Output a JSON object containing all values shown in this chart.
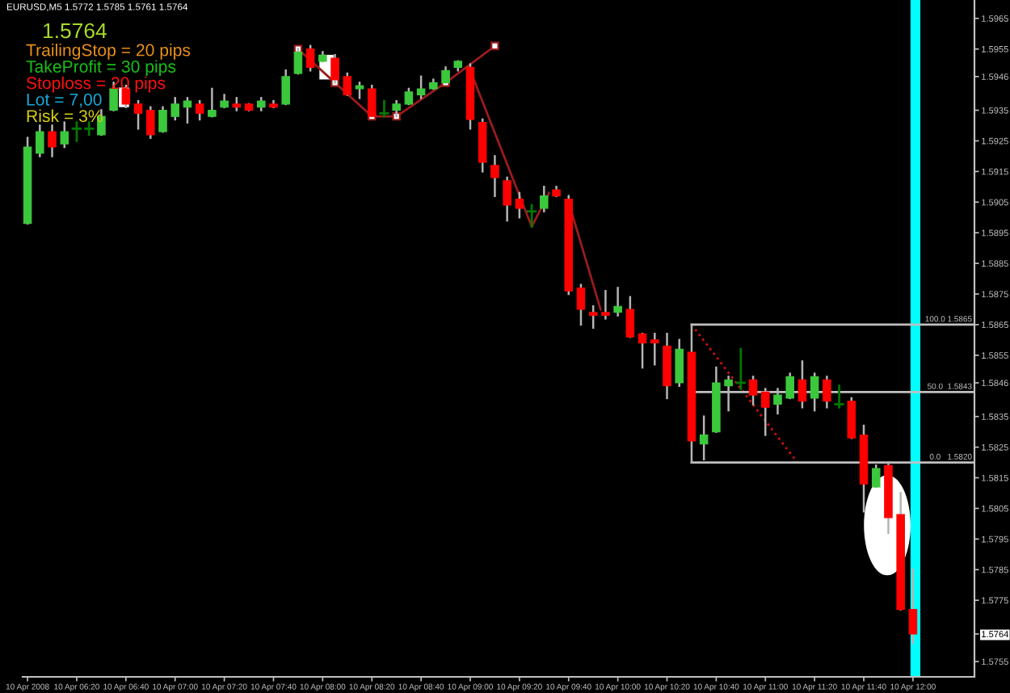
{
  "chart_data": {
    "type": "candlestick",
    "title": "EURUSD,M5 1.5772 1.5785 1.5761 1.5764",
    "x": [
      "2008-04-10T06:00",
      "2008-04-10T06:05",
      "2008-04-10T06:10",
      "2008-04-10T06:15",
      "2008-04-10T06:20",
      "2008-04-10T06:25",
      "2008-04-10T06:30",
      "2008-04-10T06:35",
      "2008-04-10T06:40",
      "2008-04-10T06:45",
      "2008-04-10T06:50",
      "2008-04-10T06:55",
      "2008-04-10T07:00",
      "2008-04-10T07:05",
      "2008-04-10T07:10",
      "2008-04-10T07:15",
      "2008-04-10T07:20",
      "2008-04-10T07:25",
      "2008-04-10T07:30",
      "2008-04-10T07:35",
      "2008-04-10T07:40",
      "2008-04-10T07:45",
      "2008-04-10T07:50",
      "2008-04-10T07:55",
      "2008-04-10T08:00",
      "2008-04-10T08:05",
      "2008-04-10T08:10",
      "2008-04-10T08:15",
      "2008-04-10T08:20",
      "2008-04-10T08:25",
      "2008-04-10T08:30",
      "2008-04-10T08:35",
      "2008-04-10T08:40",
      "2008-04-10T08:45",
      "2008-04-10T08:50",
      "2008-04-10T08:55",
      "2008-04-10T09:00",
      "2008-04-10T09:05",
      "2008-04-10T09:10",
      "2008-04-10T09:15",
      "2008-04-10T09:20",
      "2008-04-10T09:25",
      "2008-04-10T09:30",
      "2008-04-10T09:35",
      "2008-04-10T09:40",
      "2008-04-10T09:45",
      "2008-04-10T09:50",
      "2008-04-10T09:55",
      "2008-04-10T10:00",
      "2008-04-10T10:05",
      "2008-04-10T10:10",
      "2008-04-10T10:15",
      "2008-04-10T10:20",
      "2008-04-10T10:25",
      "2008-04-10T10:30",
      "2008-04-10T10:35",
      "2008-04-10T10:40",
      "2008-04-10T10:45",
      "2008-04-10T10:50",
      "2008-04-10T10:55",
      "2008-04-10T11:00",
      "2008-04-10T11:05",
      "2008-04-10T11:10",
      "2008-04-10T11:15",
      "2008-04-10T11:20",
      "2008-04-10T11:25",
      "2008-04-10T11:30",
      "2008-04-10T11:35",
      "2008-04-10T11:40",
      "2008-04-10T11:45",
      "2008-04-10T11:50",
      "2008-04-10T11:55",
      "2008-04-10T12:00"
    ],
    "ohlc": [
      [
        1.5898,
        1.5926,
        1.5898,
        1.5923
      ],
      [
        1.5921,
        1.593,
        1.592,
        1.5928
      ],
      [
        1.5928,
        1.593,
        1.592,
        1.5923
      ],
      [
        1.5924,
        1.5931,
        1.5923,
        1.5928
      ],
      [
        1.5929,
        1.5931,
        1.5925,
        1.5929
      ],
      [
        1.5929,
        1.5931,
        1.5927,
        1.5929
      ],
      [
        1.5927,
        1.5935,
        1.5927,
        1.5933
      ],
      [
        1.5935,
        1.5944,
        1.5935,
        1.5942
      ],
      [
        1.5942,
        1.5943,
        1.5936,
        1.5937
      ],
      [
        1.5937,
        1.5938,
        1.5929,
        1.5934
      ],
      [
        1.5935,
        1.5936,
        1.5926,
        1.5927
      ],
      [
        1.5928,
        1.5936,
        1.5928,
        1.5935
      ],
      [
        1.5933,
        1.5939,
        1.5932,
        1.5937
      ],
      [
        1.5936,
        1.5939,
        1.5931,
        1.5938
      ],
      [
        1.5937,
        1.5938,
        1.5932,
        1.5934
      ],
      [
        1.5933,
        1.5942,
        1.5933,
        1.5935
      ],
      [
        1.5936,
        1.594,
        1.5936,
        1.5938
      ],
      [
        1.5937,
        1.5939,
        1.5935,
        1.5936
      ],
      [
        1.5937,
        1.5937,
        1.5935,
        1.5935
      ],
      [
        1.5936,
        1.5939,
        1.5935,
        1.5938
      ],
      [
        1.5937,
        1.5938,
        1.5936,
        1.5936
      ],
      [
        1.5937,
        1.5948,
        1.5937,
        1.5946
      ],
      [
        1.5947,
        1.5955,
        1.5947,
        1.5954
      ],
      [
        1.5955,
        1.5956,
        1.5948,
        1.5949
      ],
      [
        1.5951,
        1.5954,
        1.5951,
        1.5953
      ],
      [
        1.5952,
        1.5953,
        1.5944,
        1.5945
      ],
      [
        1.5946,
        1.5947,
        1.594,
        1.594
      ],
      [
        1.5942,
        1.5944,
        1.5939,
        1.5943
      ],
      [
        1.5942,
        1.5943,
        1.5933,
        1.5933
      ],
      [
        1.5934,
        1.5938,
        1.5933,
        1.5934
      ],
      [
        1.5935,
        1.5938,
        1.5933,
        1.5937
      ],
      [
        1.5937,
        1.5942,
        1.5937,
        1.5941
      ],
      [
        1.594,
        1.5946,
        1.5939,
        1.5942
      ],
      [
        1.5942,
        1.5945,
        1.5942,
        1.5944
      ],
      [
        1.5944,
        1.5949,
        1.5944,
        1.5948
      ],
      [
        1.5949,
        1.5951,
        1.5948,
        1.5951
      ],
      [
        1.5949,
        1.595,
        1.5929,
        1.5932
      ],
      [
        1.5931,
        1.5932,
        1.5915,
        1.5918
      ],
      [
        1.5917,
        1.592,
        1.5907,
        1.5913
      ],
      [
        1.5912,
        1.5913,
        1.5899,
        1.5904
      ],
      [
        1.5906,
        1.5908,
        1.59,
        1.5903
      ],
      [
        1.5902,
        1.5904,
        1.5897,
        1.5902
      ],
      [
        1.5903,
        1.591,
        1.5902,
        1.5907
      ],
      [
        1.5909,
        1.591,
        1.5907,
        1.5907
      ],
      [
        1.5906,
        1.5907,
        1.5875,
        1.5876
      ],
      [
        1.5877,
        1.5878,
        1.5865,
        1.587
      ],
      [
        1.5869,
        1.5871,
        1.5864,
        1.5868
      ],
      [
        1.5869,
        1.5876,
        1.5867,
        1.5868
      ],
      [
        1.5869,
        1.5877,
        1.5868,
        1.5871
      ],
      [
        1.587,
        1.5874,
        1.5861,
        1.5861
      ],
      [
        1.5862,
        1.5862,
        1.5851,
        1.5859
      ],
      [
        1.586,
        1.5862,
        1.5852,
        1.5859
      ],
      [
        1.5858,
        1.5862,
        1.5841,
        1.5845
      ],
      [
        1.5846,
        1.586,
        1.5845,
        1.5857
      ],
      [
        1.5856,
        1.5865,
        1.582,
        1.5827
      ],
      [
        1.5826,
        1.5835,
        1.5821,
        1.5829
      ],
      [
        1.583,
        1.5851,
        1.583,
        1.5846
      ],
      [
        1.5845,
        1.5848,
        1.5837,
        1.5847
      ],
      [
        1.5846,
        1.5857,
        1.5844,
        1.5846
      ],
      [
        1.5847,
        1.5848,
        1.5839,
        1.5842
      ],
      [
        1.5843,
        1.5844,
        1.5829,
        1.5838
      ],
      [
        1.5839,
        1.5844,
        1.5836,
        1.5842
      ],
      [
        1.5841,
        1.5849,
        1.5841,
        1.5848
      ],
      [
        1.5847,
        1.5853,
        1.5838,
        1.584
      ],
      [
        1.5841,
        1.5849,
        1.5837,
        1.5848
      ],
      [
        1.5847,
        1.5848,
        1.5838,
        1.584
      ],
      [
        1.5839,
        1.5845,
        1.5838,
        1.5839
      ],
      [
        1.584,
        1.5841,
        1.5828,
        1.5828
      ],
      [
        1.5829,
        1.5832,
        1.5804,
        1.5813
      ],
      [
        1.5812,
        1.5819,
        1.5812,
        1.5818
      ],
      [
        1.5819,
        1.582,
        1.5797,
        1.5802
      ],
      [
        1.5803,
        1.581,
        1.5772,
        1.5772
      ],
      [
        1.5772,
        1.5785,
        1.5761,
        1.5764
      ]
    ],
    "colors": [
      "#3cc83c",
      "#3cc83c",
      "#ff0000",
      "#3cc83c",
      "#007800",
      "#007800",
      "#3cc83c",
      "#3cc83c",
      "#ff0000",
      "#ff0000",
      "#ff0000",
      "#3cc83c",
      "#3cc83c",
      "#3cc83c",
      "#ff0000",
      "#3cc83c",
      "#3cc83c",
      "#ff0000",
      "#ff0000",
      "#3cc83c",
      "#ff0000",
      "#3cc83c",
      "#3cc83c",
      "#ff0000",
      "#3cc83c",
      "#ff0000",
      "#ff0000",
      "#3cc83c",
      "#ff0000",
      "#007800",
      "#3cc83c",
      "#3cc83c",
      "#3cc83c",
      "#3cc83c",
      "#3cc83c",
      "#3cc83c",
      "#ff0000",
      "#ff0000",
      "#ff0000",
      "#ff0000",
      "#ff0000",
      "#007800",
      "#3cc83c",
      "#ff0000",
      "#ff0000",
      "#ff0000",
      "#ff0000",
      "#ff0000",
      "#3cc83c",
      "#ff0000",
      "#ff0000",
      "#ff0000",
      "#ff0000",
      "#3cc83c",
      "#ff0000",
      "#3cc83c",
      "#3cc83c",
      "#3cc83c",
      "#007800",
      "#ff0000",
      "#ff0000",
      "#3cc83c",
      "#3cc83c",
      "#ff0000",
      "#3cc83c",
      "#ff0000",
      "#007800",
      "#ff0000",
      "#ff0000",
      "#3cc83c",
      "#ff0000",
      "#ff0000",
      "#ff0000"
    ],
    "series": [
      {
        "type": "line",
        "x": [
          "2008-04-10T07:50",
          "2008-04-10T08:05",
          "2008-04-10T08:20",
          "2008-04-10T08:30",
          "2008-04-10T08:50",
          "2008-04-10T09:10"
        ],
        "values": [
          1.5955,
          1.5944,
          1.5933,
          1.5933,
          1.5944,
          1.5956
        ],
        "color": "#9a1c1c",
        "marker": "square"
      },
      {
        "type": "line",
        "x": [
          "2008-04-10T09:00",
          "2008-04-10T09:25",
          "2008-04-10T09:32"
        ],
        "values": [
          1.5948,
          1.5897,
          1.5908
        ],
        "color": "#9a1c1c"
      },
      {
        "type": "line",
        "x": [
          "2008-04-10T09:40",
          "2008-04-10T09:53"
        ],
        "values": [
          1.5905,
          1.587
        ],
        "color": "#9a1c1c"
      },
      {
        "type": "line",
        "x": [
          "2008-04-10T10:30",
          "2008-04-10T11:13"
        ],
        "values": [
          1.5865,
          1.582
        ],
        "color": "#d01010",
        "line_style": "dotted"
      },
      {
        "type": "line",
        "x": [
          "2008-04-10T10:30",
          "2008-04-10T12:25"
        ],
        "values": [
          1.5865,
          1.5865
        ],
        "color": "#c0c0c0"
      },
      {
        "type": "line",
        "x": [
          "2008-04-10T10:30",
          "2008-04-10T12:25"
        ],
        "values": [
          1.5843,
          1.5843
        ],
        "color": "#c0c0c0"
      },
      {
        "type": "line",
        "x": [
          "2008-04-10T10:30",
          "2008-04-10T12:25"
        ],
        "values": [
          1.582,
          1.582
        ],
        "color": "#c0c0c0"
      }
    ],
    "bands": [
      {
        "axis": "x",
        "from": "2008-04-10T11:59",
        "to": "2008-04-10T12:03",
        "color": "#00ffff"
      }
    ],
    "annotations": [
      "1.5764",
      "TrailingStop = 20 pips",
      "TakeProfit = 30 pips",
      "Stoploss = 20 pips",
      "Lot = 7,00",
      "Risk = 3%",
      {
        "text": "100.0",
        "x": "2008-04-10T12:09",
        "y": 1.5865
      },
      {
        "text": "1.5865",
        "x": "2008-04-10T12:19",
        "y": 1.5865
      },
      {
        "text": "50.0",
        "x": "2008-04-10T12:09",
        "y": 1.5843
      },
      {
        "text": "1.5843",
        "x": "2008-04-10T12:19",
        "y": 1.5843
      },
      {
        "text": "0.0",
        "x": "2008-04-10T12:09",
        "y": 1.582
      },
      {
        "text": "1.5820",
        "x": "2008-04-10T12:19",
        "y": 1.582
      }
    ],
    "xlim": [
      "2008-04-10T05:58",
      "2008-04-10T12:25"
    ],
    "ylim": [
      1.575,
      1.5971
    ],
    "xticks": [
      {
        "value": "2008-04-10T06:00",
        "label": "10 Apr 2008"
      },
      {
        "value": "2008-04-10T06:20",
        "label": "10 Apr 06:20"
      },
      {
        "value": "2008-04-10T06:40",
        "label": "10 Apr 06:40"
      },
      {
        "value": "2008-04-10T07:00",
        "label": "10 Apr 07:00"
      },
      {
        "value": "2008-04-10T07:20",
        "label": "10 Apr 07:20"
      },
      {
        "value": "2008-04-10T07:40",
        "label": "10 Apr 07:40"
      },
      {
        "value": "2008-04-10T08:00",
        "label": "10 Apr 08:00"
      },
      {
        "value": "2008-04-10T08:20",
        "label": "10 Apr 08:20"
      },
      {
        "value": "2008-04-10T08:40",
        "label": "10 Apr 08:40"
      },
      {
        "value": "2008-04-10T09:00",
        "label": "10 Apr 09:00"
      },
      {
        "value": "2008-04-10T09:20",
        "label": "10 Apr 09:20"
      },
      {
        "value": "2008-04-10T09:40",
        "label": "10 Apr 09:40"
      },
      {
        "value": "2008-04-10T10:00",
        "label": "10 Apr 10:00"
      },
      {
        "value": "2008-04-10T10:20",
        "label": "10 Apr 10:20"
      },
      {
        "value": "2008-04-10T10:40",
        "label": "10 Apr 10:40"
      },
      {
        "value": "2008-04-10T11:00",
        "label": "10 Apr 11:00"
      },
      {
        "value": "2008-04-10T11:20",
        "label": "10 Apr 11:20"
      },
      {
        "value": "2008-04-10T11:40",
        "label": "10 Apr 11:40"
      },
      {
        "value": "2008-04-10T12:00",
        "label": "10 Apr 12:00"
      }
    ],
    "yticks": [
      1.5965,
      1.5955,
      1.5946,
      1.5935,
      1.5925,
      1.5915,
      1.5905,
      1.5895,
      1.5885,
      1.5875,
      1.5865,
      1.5855,
      1.5846,
      1.5835,
      1.5825,
      1.5815,
      1.5805,
      1.5795,
      1.5785,
      1.5775,
      1.5764,
      1.5755
    ]
  }
}
